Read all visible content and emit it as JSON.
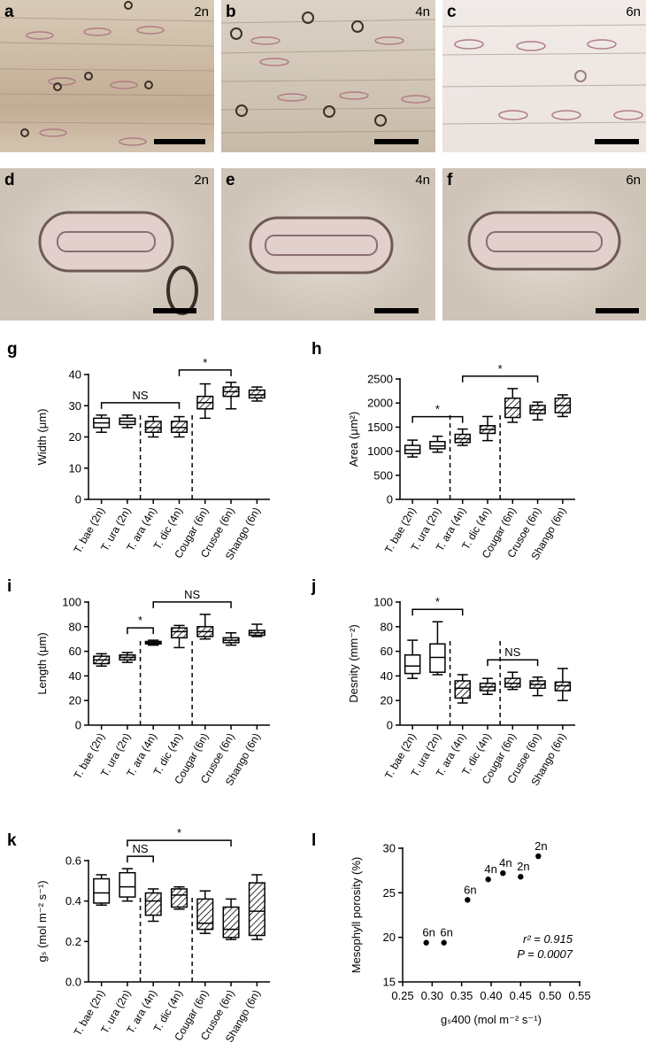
{
  "micrographs": [
    {
      "panel": "a",
      "ploidy": "2n"
    },
    {
      "panel": "b",
      "ploidy": "4n"
    },
    {
      "panel": "c",
      "ploidy": "6n"
    },
    {
      "panel": "d",
      "ploidy": "2n"
    },
    {
      "panel": "e",
      "ploidy": "4n"
    },
    {
      "panel": "f",
      "ploidy": "6n"
    }
  ],
  "chart_data": [
    {
      "type": "box",
      "label": "g",
      "ylabel": "Width (μm)",
      "categories": [
        "T. bae (2n)",
        "T. ura (2n)",
        "T. ara (4n)",
        "T. dic (4n)",
        "Cougar (6n)",
        "Crusoe (6n)",
        "Shango (6n)"
      ],
      "boxes": [
        {
          "min": 21.5,
          "q1": 23,
          "median": 24.5,
          "q3": 26,
          "max": 27
        },
        {
          "min": 23,
          "q1": 24,
          "median": 25,
          "q3": 26,
          "max": 27
        },
        {
          "min": 20,
          "q1": 21.5,
          "median": 23,
          "q3": 25,
          "max": 26.5
        },
        {
          "min": 20,
          "q1": 21.5,
          "median": 23,
          "q3": 25,
          "max": 26.5
        },
        {
          "min": 26,
          "q1": 29,
          "median": 31,
          "q3": 33,
          "max": 37
        },
        {
          "min": 29,
          "q1": 33,
          "median": 34.5,
          "q3": 36,
          "max": 37.5
        },
        {
          "min": 31.5,
          "q1": 32.5,
          "median": 33.5,
          "q3": 35,
          "max": 36
        }
      ],
      "hatched": [
        false,
        false,
        true,
        true,
        true,
        true,
        true
      ],
      "ylim": [
        0,
        40
      ],
      "yticks": [
        0,
        10,
        20,
        30,
        40
      ],
      "annotations": [
        {
          "text": "NS",
          "from": "T. bae (2n)",
          "to": "T. dic (4n)"
        },
        {
          "text": "*",
          "from": "T. dic (4n)",
          "to": "Crusoe (6n)"
        }
      ]
    },
    {
      "type": "box",
      "label": "h",
      "ylabel": "Area (μm²)",
      "categories": [
        "T. bae (2n)",
        "T. ura (2n)",
        "T. ara (4n)",
        "T. dic (4n)",
        "Cougar (6n)",
        "Crusoe (6n)",
        "Shango (6n)"
      ],
      "boxes": [
        {
          "min": 880,
          "q1": 950,
          "median": 1030,
          "q3": 1120,
          "max": 1230
        },
        {
          "min": 980,
          "q1": 1050,
          "median": 1110,
          "q3": 1200,
          "max": 1310
        },
        {
          "min": 1120,
          "q1": 1180,
          "median": 1260,
          "q3": 1350,
          "max": 1460
        },
        {
          "min": 1220,
          "q1": 1370,
          "median": 1450,
          "q3": 1530,
          "max": 1720
        },
        {
          "min": 1600,
          "q1": 1700,
          "median": 1900,
          "q3": 2100,
          "max": 2300
        },
        {
          "min": 1650,
          "q1": 1780,
          "median": 1860,
          "q3": 1950,
          "max": 2020
        },
        {
          "min": 1720,
          "q1": 1800,
          "median": 1950,
          "q3": 2100,
          "max": 2170
        }
      ],
      "hatched": [
        false,
        false,
        true,
        true,
        true,
        true,
        true
      ],
      "ylim": [
        0,
        2500
      ],
      "yticks": [
        0,
        500,
        1000,
        1500,
        2000,
        2500
      ],
      "annotations": [
        {
          "text": "*",
          "from": "T. bae (2n)",
          "to": "T. ara (4n)"
        },
        {
          "text": "*",
          "from": "T. ara (4n)",
          "to": "Crusoe (6n)"
        }
      ]
    },
    {
      "type": "box",
      "label": "i",
      "ylabel": "Length (μm)",
      "categories": [
        "T. bae (2n)",
        "T. ura (2n)",
        "T. ara (4n)",
        "T. dic (4n)",
        "Cougar (6n)",
        "Crusoe (6n)",
        "Shango (6n)"
      ],
      "boxes": [
        {
          "min": 48,
          "q1": 50,
          "median": 53,
          "q3": 56,
          "max": 58
        },
        {
          "min": 51,
          "q1": 53,
          "median": 55,
          "q3": 57,
          "max": 59
        },
        {
          "min": 65,
          "q1": 66,
          "median": 67,
          "q3": 68,
          "max": 69
        },
        {
          "min": 63,
          "q1": 71,
          "median": 76,
          "q3": 79,
          "max": 81
        },
        {
          "min": 70,
          "q1": 72,
          "median": 76,
          "q3": 80,
          "max": 90
        },
        {
          "min": 65,
          "q1": 67,
          "median": 69,
          "q3": 71,
          "max": 75
        },
        {
          "min": 72,
          "q1": 73,
          "median": 75,
          "q3": 77,
          "max": 82
        }
      ],
      "hatched": [
        true,
        true,
        true,
        true,
        true,
        true,
        true
      ],
      "ylim": [
        0,
        100
      ],
      "yticks": [
        0,
        20,
        40,
        60,
        80,
        100
      ],
      "annotations": [
        {
          "text": "*",
          "from": "T. ura (2n)",
          "to": "T. ara (4n)"
        },
        {
          "text": "NS",
          "from": "T. ara (4n)",
          "to": "Crusoe (6n)"
        }
      ]
    },
    {
      "type": "box",
      "label": "j",
      "ylabel": "Desnity (mm⁻²)",
      "categories": [
        "T. bae (2n)",
        "T. ura (2n)",
        "T. ara (4n)",
        "T. dic (4n)",
        "Cougar (6n)",
        "Crusoe (6n)",
        "Shango (6n)"
      ],
      "boxes": [
        {
          "min": 38,
          "q1": 42,
          "median": 48,
          "q3": 57,
          "max": 69
        },
        {
          "min": 41,
          "q1": 43,
          "median": 55,
          "q3": 66,
          "max": 84
        },
        {
          "min": 18,
          "q1": 22,
          "median": 30,
          "q3": 36,
          "max": 41
        },
        {
          "min": 25,
          "q1": 28,
          "median": 31,
          "q3": 34,
          "max": 38
        },
        {
          "min": 29,
          "q1": 31,
          "median": 34,
          "q3": 38,
          "max": 43
        },
        {
          "min": 24,
          "q1": 30,
          "median": 33,
          "q3": 36,
          "max": 39
        },
        {
          "min": 20,
          "q1": 28,
          "median": 32,
          "q3": 35,
          "max": 46
        }
      ],
      "hatched": [
        false,
        false,
        true,
        true,
        true,
        true,
        true
      ],
      "ylim": [
        0,
        100
      ],
      "yticks": [
        0,
        20,
        40,
        60,
        80,
        100
      ],
      "annotations": [
        {
          "text": "*",
          "from": "T. bae (2n)",
          "to": "T. ara (4n)"
        },
        {
          "text": "NS",
          "from": "T. dic (4n)",
          "to": "Crusoe (6n)"
        }
      ]
    },
    {
      "type": "box",
      "label": "k",
      "ylabel": "gₛ (mol m⁻² s⁻¹)",
      "categories": [
        "T. bae (2n)",
        "T. ura (2n)",
        "T. ara (4n)",
        "T. dic (4n)",
        "Cougar (6n)",
        "Crusoe (6n)",
        "Shango (6n)"
      ],
      "boxes": [
        {
          "min": 0.38,
          "q1": 0.39,
          "median": 0.44,
          "q3": 0.51,
          "max": 0.53
        },
        {
          "min": 0.4,
          "q1": 0.42,
          "median": 0.47,
          "q3": 0.54,
          "max": 0.56
        },
        {
          "min": 0.3,
          "q1": 0.33,
          "median": 0.4,
          "q3": 0.44,
          "max": 0.46
        },
        {
          "min": 0.36,
          "q1": 0.37,
          "median": 0.43,
          "q3": 0.46,
          "max": 0.47
        },
        {
          "min": 0.24,
          "q1": 0.26,
          "median": 0.29,
          "q3": 0.41,
          "max": 0.45
        },
        {
          "min": 0.21,
          "q1": 0.22,
          "median": 0.26,
          "q3": 0.37,
          "max": 0.41
        },
        {
          "min": 0.21,
          "q1": 0.23,
          "median": 0.35,
          "q3": 0.49,
          "max": 0.53
        }
      ],
      "hatched": [
        false,
        false,
        true,
        true,
        true,
        true,
        true
      ],
      "ylim": [
        0,
        0.6
      ],
      "yticks": [
        {
          "value": 0,
          "label": "0.0"
        },
        0.2,
        0.4,
        0.6
      ],
      "annotations": [
        {
          "text": "NS",
          "from": "T. ura (2n)",
          "to": "T. ara (4n)"
        },
        {
          "text": "*",
          "from": "T. ura (2n)",
          "to": "Crusoe (6n)"
        }
      ]
    },
    {
      "type": "scatter",
      "label": "l",
      "xlabel": "gₛ400 (mol m⁻² s⁻¹)",
      "ylabel": "Mesophyll porosity (%)",
      "x": [
        0.29,
        0.32,
        0.36,
        0.395,
        0.42,
        0.45,
        0.48
      ],
      "values": [
        19.4,
        19.4,
        24.2,
        26.5,
        27.2,
        26.8,
        29.1
      ],
      "point_labels": [
        "6n",
        "6n",
        "6n",
        "4n",
        "4n",
        "2n",
        "2n"
      ],
      "xlim": [
        0.25,
        0.55
      ],
      "xticks": [
        0.25,
        {
          "value": 0.3,
          "label": "0.30"
        },
        0.35,
        {
          "value": 0.4,
          "label": "0.40"
        },
        0.45,
        {
          "value": 0.5,
          "label": "0.50"
        },
        0.55
      ],
      "ylim": [
        15,
        30
      ],
      "yticks": [
        15,
        20,
        25,
        30
      ],
      "annotations": [
        "r² = 0.915",
        "P = 0.0007"
      ]
    }
  ]
}
